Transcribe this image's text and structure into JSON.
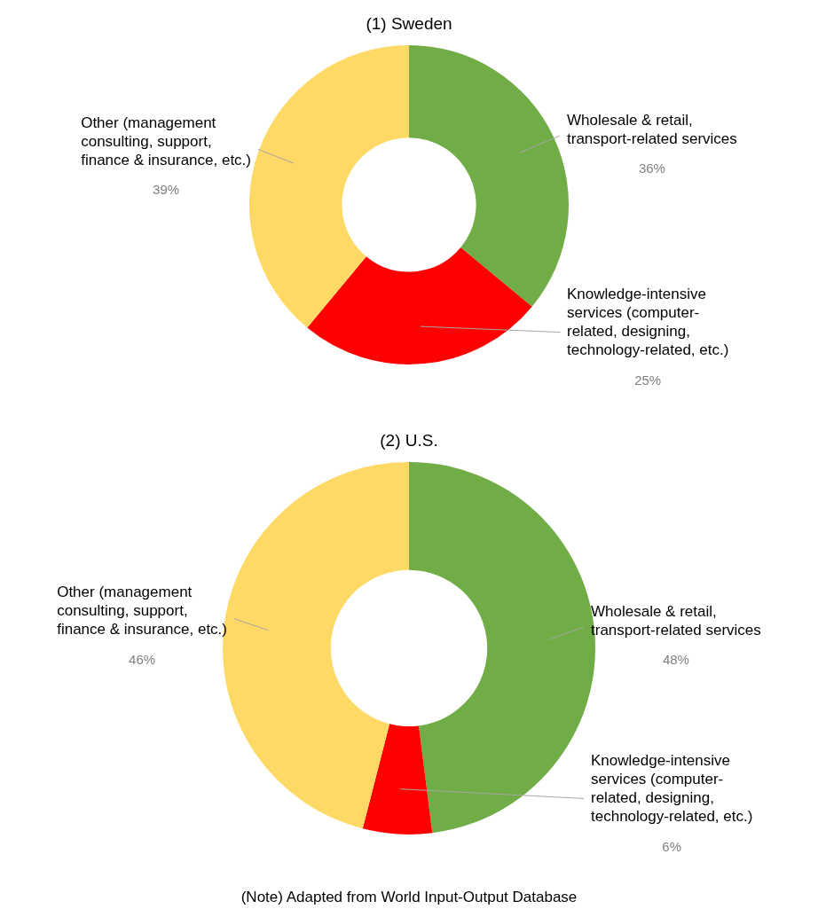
{
  "chart_data": [
    {
      "type": "donut",
      "title": "(1) Sweden",
      "categories": [
        "Wholesale & retail, transport-related services",
        "Knowledge-intensive services (computer-related, designing, technology-related, etc.)",
        "Other (management consulting, support, finance & insurance, etc.)"
      ],
      "values": [
        36,
        25,
        39
      ],
      "value_labels": [
        "36%",
        "25%",
        "39%"
      ],
      "colors": [
        "#70ad47",
        "#ff0000",
        "#ffd966"
      ],
      "legend": false
    },
    {
      "type": "donut",
      "title": "(2) U.S.",
      "categories": [
        "Wholesale & retail, transport-related services",
        "Knowledge-intensive services (computer-related, designing, technology-related, etc.)",
        "Other (management consulting, support, finance & insurance, etc.)"
      ],
      "values": [
        48,
        6,
        46
      ],
      "value_labels": [
        "48%",
        "6%",
        "46%"
      ],
      "colors": [
        "#70ad47",
        "#ff0000",
        "#ffd966"
      ],
      "legend": false,
      "annotations": [
        "(Note) Adapted from World Input-Output Database"
      ]
    }
  ]
}
